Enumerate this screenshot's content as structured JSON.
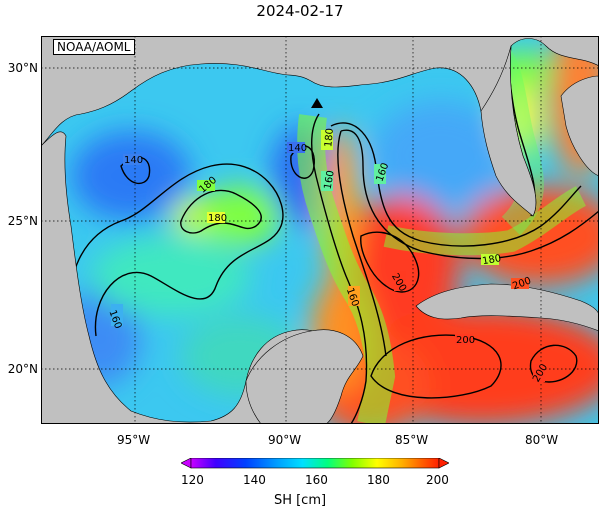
{
  "title": "2024-02-17",
  "credit": "NOAA/AOML",
  "variable_label": "SH [cm]",
  "lat_labels": [
    "30°N",
    "25°N",
    "20°N"
  ],
  "lon_labels": [
    "95°W",
    "90°W",
    "85°W",
    "80°W"
  ],
  "colorbar": {
    "ticks": [
      "120",
      "140",
      "160",
      "180",
      "200"
    ],
    "stops": [
      "#c800ff",
      "#4000ff",
      "#0040ff",
      "#00a0ff",
      "#00e0ff",
      "#00ff80",
      "#80ff00",
      "#ffff00",
      "#ffb000",
      "#ff6000",
      "#ff2000"
    ]
  },
  "contour_labels": [
    "140",
    "140",
    "160",
    "160",
    "160",
    "160",
    "180",
    "180",
    "180",
    "180",
    "200",
    "200",
    "200",
    "200"
  ],
  "marker": "triangle-marker",
  "colors": {
    "land": "#c0c0c0",
    "warm_core": "#ff3c1e",
    "cool": "#3ca0ff"
  }
}
